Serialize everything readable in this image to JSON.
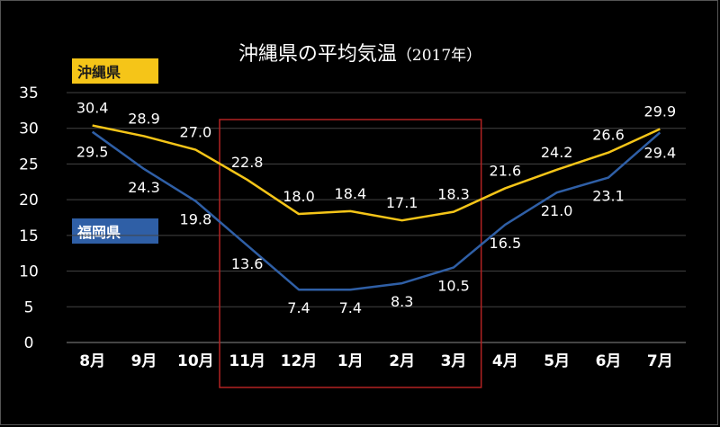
{
  "chart_data": {
    "type": "line",
    "title": "沖縄県の平均気温",
    "subtitle": "（2017年）",
    "categories": [
      "8月",
      "9月",
      "10月",
      "11月",
      "12月",
      "1月",
      "2月",
      "3月",
      "4月",
      "5月",
      "6月",
      "7月"
    ],
    "ylim": [
      0,
      35
    ],
    "yticks": [
      0,
      5,
      10,
      15,
      20,
      25,
      30,
      35
    ],
    "grid": true,
    "series": [
      {
        "name": "沖縄県",
        "color": "#f5c518",
        "values": [
          30.4,
          28.9,
          27.0,
          22.8,
          18.0,
          18.4,
          17.1,
          18.3,
          21.6,
          24.2,
          26.6,
          29.9
        ]
      },
      {
        "name": "福岡県",
        "color": "#2f5fa6",
        "values": [
          29.5,
          24.3,
          19.8,
          13.6,
          7.4,
          7.4,
          8.3,
          10.5,
          16.5,
          21.0,
          23.1,
          29.4
        ]
      }
    ],
    "highlight": {
      "from": "11月",
      "to": "3月",
      "color": "#b22222"
    }
  }
}
